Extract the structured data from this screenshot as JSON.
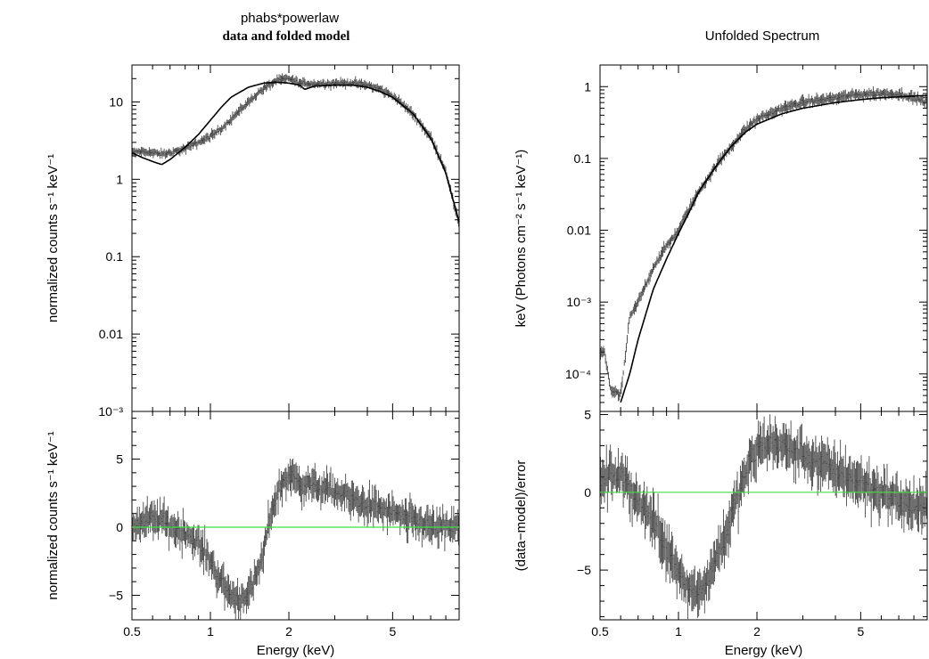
{
  "chart_data": [
    {
      "type": "line",
      "panel": "left-top",
      "title": "phabs*powerlaw",
      "subtitle": "data and folded model",
      "ylabel": "normalized counts s⁻¹ keV⁻¹",
      "xscale": "log",
      "yscale": "log",
      "xlim": [
        0.5,
        9.0
      ],
      "ylim": [
        0.001,
        30
      ],
      "xticks": [
        "0.5",
        "1",
        "2",
        "5"
      ],
      "yticks": [
        {
          "label": "10⁻³",
          "value": 0.001
        },
        {
          "label": "0.01",
          "value": 0.01
        },
        {
          "label": "0.1",
          "value": 0.1
        },
        {
          "label": "1",
          "value": 1
        },
        {
          "label": "10",
          "value": 10
        }
      ],
      "series": [
        {
          "role": "data",
          "x": [
            0.5,
            0.55,
            0.6,
            0.65,
            0.7,
            0.8,
            0.9,
            1.0,
            1.1,
            1.2,
            1.4,
            1.6,
            1.8,
            2.0,
            2.2,
            2.5,
            3.0,
            3.5,
            4.0,
            4.5,
            5.0,
            6.0,
            7.0,
            8.0,
            9.0
          ],
          "y": [
            2.2,
            2.3,
            2.2,
            2.1,
            2.2,
            2.5,
            3.0,
            3.6,
            4.5,
            6.0,
            10,
            15,
            19,
            20,
            17.5,
            17,
            17.5,
            17.5,
            16.5,
            14.5,
            12,
            7,
            3.5,
            1.3,
            0.25
          ]
        },
        {
          "role": "model",
          "x": [
            0.5,
            0.55,
            0.6,
            0.65,
            0.7,
            0.8,
            0.9,
            1.0,
            1.1,
            1.2,
            1.4,
            1.6,
            1.8,
            2.0,
            2.2,
            2.3,
            2.5,
            3.0,
            3.5,
            4.0,
            4.5,
            5.0,
            6.0,
            7.0,
            8.0,
            9.0
          ],
          "y": [
            2.2,
            1.9,
            1.7,
            1.55,
            1.8,
            2.6,
            3.8,
            5.8,
            8.5,
            11.5,
            15.5,
            17.5,
            18,
            17.5,
            16.5,
            14.5,
            16,
            16.5,
            16.5,
            15.5,
            13.5,
            11.5,
            7,
            3.4,
            1.2,
            0.28
          ]
        }
      ]
    },
    {
      "type": "line",
      "panel": "left-bottom",
      "xlabel": "Energy (keV)",
      "ylabel": "normalized counts s⁻¹ keV⁻¹",
      "xscale": "log",
      "xlim": [
        0.5,
        9.0
      ],
      "ylim": [
        -6.8,
        8.5
      ],
      "xticks": [
        "0.5",
        "1",
        "2",
        "5"
      ],
      "yticks": [
        {
          "label": "−5",
          "value": -5
        },
        {
          "label": "0",
          "value": 0
        },
        {
          "label": "5",
          "value": 5
        }
      ],
      "reference_line": {
        "y": 0,
        "color": "#44dd44"
      },
      "series": [
        {
          "role": "residuals",
          "x": [
            0.5,
            0.55,
            0.6,
            0.65,
            0.7,
            0.8,
            0.9,
            1.0,
            1.1,
            1.2,
            1.3,
            1.45,
            1.6,
            1.7,
            1.85,
            2.0,
            2.3,
            2.7,
            3.2,
            3.8,
            4.5,
            5.5,
            6.5,
            7.5,
            9.0
          ],
          "y": [
            0.1,
            0.4,
            0.6,
            0.5,
            0.1,
            -0.4,
            -1.2,
            -2.5,
            -4,
            -5,
            -5.3,
            -4.5,
            -2,
            1,
            3,
            3.8,
            3.2,
            2.8,
            2.4,
            1.8,
            1.3,
            0.7,
            0.3,
            -0.1,
            0
          ]
        }
      ]
    },
    {
      "type": "line",
      "panel": "right-top",
      "title": "Unfolded Spectrum",
      "ylabel": "keV (Photons cm⁻² s⁻¹ keV⁻¹)",
      "xscale": "log",
      "yscale": "log",
      "xlim": [
        0.5,
        9.0
      ],
      "ylim": [
        3e-05,
        2
      ],
      "xticks": [
        "0.5",
        "1",
        "2",
        "5"
      ],
      "yticks": [
        {
          "label": "10⁻⁴",
          "value": 0.0001
        },
        {
          "label": "10⁻³",
          "value": 0.001
        },
        {
          "label": "0.01",
          "value": 0.01
        },
        {
          "label": "0.1",
          "value": 0.1
        },
        {
          "label": "1",
          "value": 1
        }
      ],
      "series": [
        {
          "role": "data",
          "x": [
            0.52,
            0.55,
            0.6,
            0.65,
            0.7,
            0.8,
            0.9,
            1.0,
            1.1,
            1.2,
            1.4,
            1.6,
            1.8,
            2.0,
            2.5,
            3.0,
            4.0,
            5.0,
            6.0,
            7.0,
            8.0,
            9.0
          ],
          "y": [
            0.0002,
            6e-05,
            5e-05,
            0.0006,
            0.001,
            0.003,
            0.006,
            0.01,
            0.02,
            0.035,
            0.08,
            0.15,
            0.25,
            0.35,
            0.5,
            0.6,
            0.7,
            0.78,
            0.8,
            0.78,
            0.7,
            0.6
          ]
        },
        {
          "role": "model",
          "x": [
            0.6,
            0.65,
            0.7,
            0.8,
            0.9,
            1.0,
            1.1,
            1.2,
            1.4,
            1.6,
            1.8,
            2.0,
            2.5,
            3.0,
            4.0,
            5.0,
            6.0,
            7.0,
            8.0,
            9.0
          ],
          "y": [
            4e-05,
            0.0001,
            0.0003,
            0.0015,
            0.004,
            0.009,
            0.018,
            0.035,
            0.08,
            0.15,
            0.23,
            0.3,
            0.42,
            0.5,
            0.6,
            0.66,
            0.7,
            0.72,
            0.74,
            0.75
          ]
        }
      ]
    },
    {
      "type": "line",
      "panel": "right-bottom",
      "xlabel": "Energy (keV)",
      "ylabel": "(data−model)/error",
      "xscale": "log",
      "xlim": [
        0.5,
        9.0
      ],
      "ylim": [
        -8.2,
        5.2
      ],
      "xticks": [
        "0.5",
        "1",
        "2",
        "5"
      ],
      "yticks": [
        {
          "label": "−5",
          "value": -5
        },
        {
          "label": "0",
          "value": 0
        },
        {
          "label": "5",
          "value": 5
        }
      ],
      "reference_line": {
        "y": 0,
        "color": "#44dd44"
      },
      "series": [
        {
          "role": "residuals",
          "x": [
            0.5,
            0.55,
            0.6,
            0.65,
            0.7,
            0.8,
            0.9,
            1.0,
            1.1,
            1.2,
            1.3,
            1.45,
            1.6,
            1.75,
            1.9,
            2.0,
            2.3,
            2.7,
            3.2,
            3.8,
            4.5,
            5.5,
            6.5,
            7.5,
            9.0
          ],
          "y": [
            0.5,
            1.2,
            1.0,
            0.3,
            -0.5,
            -1.8,
            -3.5,
            -5,
            -6.2,
            -6.5,
            -5.5,
            -3.5,
            -1.5,
            0.5,
            2,
            2.8,
            3.2,
            2.7,
            2.2,
            1.5,
            1.0,
            0.3,
            -0.3,
            -0.8,
            -1.2
          ]
        }
      ]
    }
  ]
}
